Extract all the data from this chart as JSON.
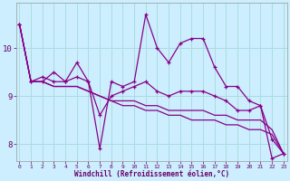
{
  "xlabel": "Windchill (Refroidissement éolien,°C)",
  "bg_color": "#cceeff",
  "grid_color": "#aadddd",
  "line_color": "#880088",
  "hours": [
    0,
    1,
    2,
    3,
    4,
    5,
    6,
    7,
    8,
    9,
    10,
    11,
    12,
    13,
    14,
    15,
    16,
    17,
    18,
    19,
    20,
    21,
    22,
    23
  ],
  "line1": [
    10.5,
    9.3,
    9.3,
    9.5,
    9.3,
    9.7,
    9.3,
    7.9,
    9.3,
    9.2,
    9.3,
    10.7,
    10.0,
    9.7,
    10.1,
    10.2,
    10.2,
    9.6,
    9.2,
    9.2,
    8.9,
    8.8,
    7.7,
    7.8
  ],
  "line2": [
    10.5,
    9.3,
    9.4,
    9.3,
    9.3,
    9.4,
    9.3,
    8.6,
    9.0,
    9.1,
    9.2,
    9.3,
    9.1,
    9.0,
    9.1,
    9.1,
    9.1,
    9.0,
    8.9,
    8.7,
    8.7,
    8.8,
    8.1,
    7.8
  ],
  "line3": [
    10.5,
    9.3,
    9.3,
    9.2,
    9.2,
    9.2,
    9.1,
    9.0,
    8.9,
    8.9,
    8.9,
    8.8,
    8.8,
    8.7,
    8.7,
    8.7,
    8.7,
    8.6,
    8.6,
    8.5,
    8.5,
    8.5,
    8.3,
    7.8
  ],
  "line4": [
    10.5,
    9.3,
    9.3,
    9.2,
    9.2,
    9.2,
    9.1,
    9.0,
    8.9,
    8.8,
    8.8,
    8.7,
    8.7,
    8.6,
    8.6,
    8.5,
    8.5,
    8.5,
    8.4,
    8.4,
    8.3,
    8.3,
    8.2,
    7.8
  ],
  "ylim": [
    7.65,
    10.95
  ],
  "yticks": [
    8,
    9,
    10
  ],
  "xticks": [
    0,
    1,
    2,
    3,
    4,
    5,
    6,
    7,
    8,
    9,
    10,
    11,
    12,
    13,
    14,
    15,
    16,
    17,
    18,
    19,
    20,
    21,
    22,
    23
  ]
}
